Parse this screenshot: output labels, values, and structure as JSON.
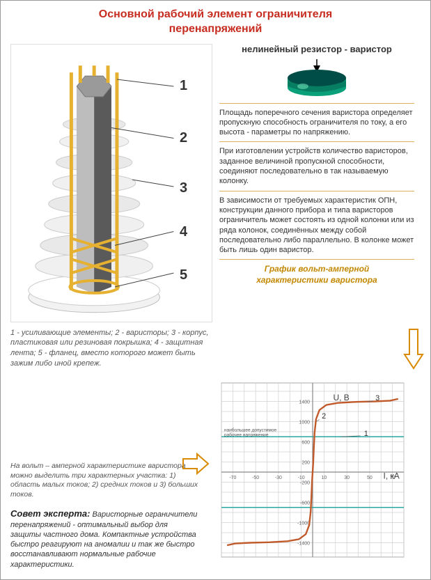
{
  "title_l1": "Основной рабочий элемент ограничителя",
  "title_l2": "перенапряжений",
  "diagram": {
    "callouts": [
      "1",
      "2",
      "3",
      "4",
      "5"
    ],
    "legend": "1 - усиливающие элементы; 2 - варисторы; 3 - корпус, пластиковая или резиновая покрышка; 4 - защитная лента; 5 - фланец, вместо которого может быть зажим либо иной крепеж.",
    "colors": {
      "frame": "#e6b131",
      "body_light": "#cfcfcf",
      "body_dark": "#6b6b6b",
      "rib_light": "#f0f0f0",
      "rib_dark": "#cfcfcf"
    }
  },
  "varistor": {
    "label": "нелинейный резистор - варистор",
    "colors": {
      "top": "#004d47",
      "side": "#0aa07a",
      "highlight": "#6de0b8"
    }
  },
  "para1": "Площадь поперечного сечения варистора определяет пропускную способность ограничителя по току, а его высота - параметры по напряжению.",
  "para2": "При изготовлении устройств количество варисторов, заданное величиной пропускной способности, соединяют последовательно в так называемую колонку.",
  "para3": "В зависимости от требуемых характеристик ОПН, конструкции данного прибора и типа варисторов ограничитель может состоять из одной колонки или из ряда колонок, соединённых между собой последовательно либо параллельно. В колонке может быть лишь один варистор.",
  "chart": {
    "title_l1": "График вольт-амперной",
    "title_l2": "характеристики варистора",
    "y_label": "U, В",
    "x_label": "I, кА",
    "x_ticks": [
      -70,
      -50,
      -30,
      -10,
      10,
      30,
      50,
      70
    ],
    "y_ticks": [
      -1400,
      -1000,
      -600,
      -200,
      200,
      600,
      1000,
      1400
    ],
    "threshold_note": "наибольшее допустимое рабочее напряжение",
    "region_labels": [
      "1",
      "2",
      "3"
    ],
    "thresholds_y": [
      700,
      -700
    ],
    "curve_color": "#c05a2a",
    "grid_color": "#d0d0d0",
    "axis_color": "#888888",
    "threshold_color": "#2aa8a0",
    "curve_points": [
      [
        -75,
        -1450
      ],
      [
        -68,
        -1415
      ],
      [
        -55,
        -1400
      ],
      [
        -38,
        -1390
      ],
      [
        -22,
        -1370
      ],
      [
        -12,
        -1330
      ],
      [
        -6,
        -1230
      ],
      [
        -3,
        -1050
      ],
      [
        -1.7,
        -780
      ],
      [
        -1.0,
        -450
      ],
      [
        -0.5,
        -180
      ],
      [
        0,
        0
      ],
      [
        0.5,
        180
      ],
      [
        1.0,
        450
      ],
      [
        1.7,
        780
      ],
      [
        3,
        1050
      ],
      [
        6,
        1230
      ],
      [
        12,
        1330
      ],
      [
        22,
        1370
      ],
      [
        38,
        1390
      ],
      [
        55,
        1400
      ],
      [
        68,
        1415
      ],
      [
        75,
        1450
      ]
    ],
    "xlim": [
      -80,
      80
    ],
    "ylim": [
      -1600,
      1600
    ]
  },
  "iv_text": "На вольт – амперной характеристике варистора можно выделить три характерных участка: 1) область малых токов; 2) средних токов и 3)  больших токов.",
  "expert_label": "Совет эксперта:",
  "expert_text": " Варисторные ограничители перенапряжений - оптимальный выбор для защиты частного дома. Компактные устройства быстро реагируют на аномалии и так же быстро восстанавливают нормальные рабочие характеристики.",
  "arrow_color": "#d88b00"
}
